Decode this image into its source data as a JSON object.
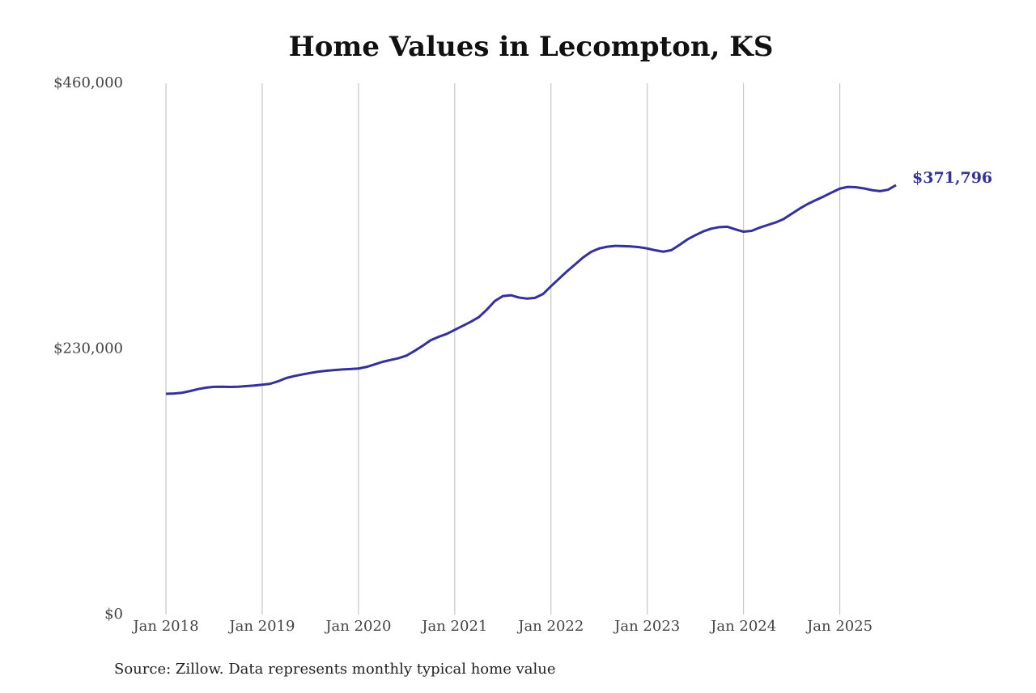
{
  "chart_data": {
    "type": "line",
    "title": "Home Values in Lecompton, KS",
    "source": "Source: Zillow. Data represents monthly typical home value",
    "x": [
      "2018-01",
      "2018-02",
      "2018-03",
      "2018-04",
      "2018-05",
      "2018-06",
      "2018-07",
      "2018-08",
      "2018-09",
      "2018-10",
      "2018-11",
      "2018-12",
      "2019-01",
      "2019-02",
      "2019-03",
      "2019-04",
      "2019-05",
      "2019-06",
      "2019-07",
      "2019-08",
      "2019-09",
      "2019-10",
      "2019-11",
      "2019-12",
      "2020-01",
      "2020-02",
      "2020-03",
      "2020-04",
      "2020-05",
      "2020-06",
      "2020-07",
      "2020-08",
      "2020-09",
      "2020-10",
      "2020-11",
      "2020-12",
      "2021-01",
      "2021-02",
      "2021-03",
      "2021-04",
      "2021-05",
      "2021-06",
      "2021-07",
      "2021-08",
      "2021-09",
      "2021-10",
      "2021-11",
      "2021-12",
      "2022-01",
      "2022-02",
      "2022-03",
      "2022-04",
      "2022-05",
      "2022-06",
      "2022-07",
      "2022-08",
      "2022-09",
      "2022-10",
      "2022-11",
      "2022-12",
      "2023-01",
      "2023-02",
      "2023-03",
      "2023-04",
      "2023-05",
      "2023-06",
      "2023-07",
      "2023-08",
      "2023-09",
      "2023-10",
      "2023-11",
      "2023-12",
      "2024-01",
      "2024-02",
      "2024-03",
      "2024-04",
      "2024-05",
      "2024-06",
      "2024-07",
      "2024-08",
      "2024-09",
      "2024-10",
      "2024-11",
      "2024-12",
      "2025-01",
      "2025-02",
      "2025-03",
      "2025-04",
      "2025-05",
      "2025-06",
      "2025-07",
      "2025-08"
    ],
    "series": [
      {
        "name": "Typical home value",
        "color": "#35319a",
        "values": [
          191100,
          191400,
          192000,
          193500,
          195200,
          196500,
          197200,
          197300,
          197100,
          197300,
          197800,
          198300,
          199000,
          199800,
          202000,
          204800,
          206500,
          207900,
          209200,
          210300,
          211100,
          211700,
          212200,
          212600,
          213000,
          214400,
          216600,
          218800,
          220400,
          222000,
          224300,
          228300,
          232700,
          237500,
          240500,
          243000,
          246500,
          250000,
          253500,
          257500,
          264000,
          271500,
          275800,
          276500,
          274500,
          273600,
          274200,
          277500,
          284300,
          290800,
          297200,
          303200,
          309200,
          314000,
          317000,
          318500,
          319200,
          319000,
          318700,
          318100,
          317000,
          315400,
          314200,
          315500,
          320000,
          324800,
          328500,
          331800,
          334200,
          335500,
          335800,
          333500,
          331500,
          332200,
          335000,
          337300,
          339500,
          342500,
          347000,
          351500,
          355500,
          358800,
          362000,
          365500,
          368800,
          370300,
          370000,
          369000,
          367500,
          366600,
          367800,
          371796
        ],
        "value_labels": [
          null,
          null,
          null,
          null,
          null,
          null,
          null,
          null,
          null,
          null,
          null,
          null,
          null,
          null,
          null,
          null,
          null,
          null,
          null,
          null,
          null,
          null,
          null,
          null,
          null,
          null,
          null,
          null,
          null,
          null,
          null,
          null,
          null,
          null,
          null,
          null,
          null,
          null,
          null,
          null,
          null,
          null,
          null,
          null,
          null,
          null,
          null,
          null,
          null,
          null,
          null,
          null,
          null,
          null,
          null,
          null,
          null,
          null,
          null,
          null,
          null,
          null,
          null,
          null,
          null,
          null,
          null,
          null,
          null,
          null,
          null,
          null,
          null,
          null,
          null,
          null,
          null,
          null,
          null,
          null,
          null,
          null,
          null,
          null,
          null,
          null,
          null,
          null,
          null,
          null,
          null,
          "$371,796"
        ]
      }
    ],
    "xlim": [
      "2018-01",
      "2025-08"
    ],
    "xticks": [
      {
        "value": "2018-01",
        "label": "Jan 2018"
      },
      {
        "value": "2019-01",
        "label": "Jan 2019"
      },
      {
        "value": "2020-01",
        "label": "Jan 2020"
      },
      {
        "value": "2021-01",
        "label": "Jan 2021"
      },
      {
        "value": "2022-01",
        "label": "Jan 2022"
      },
      {
        "value": "2023-01",
        "label": "Jan 2023"
      },
      {
        "value": "2024-01",
        "label": "Jan 2024"
      },
      {
        "value": "2025-01",
        "label": "Jan 2025"
      }
    ],
    "ylim": [
      0,
      460000
    ],
    "yticks": [
      {
        "value": 0,
        "label": "$0"
      },
      {
        "value": 230000,
        "label": "$230,000"
      },
      {
        "value": 460000,
        "label": "$460,000"
      }
    ],
    "grid": "x"
  }
}
